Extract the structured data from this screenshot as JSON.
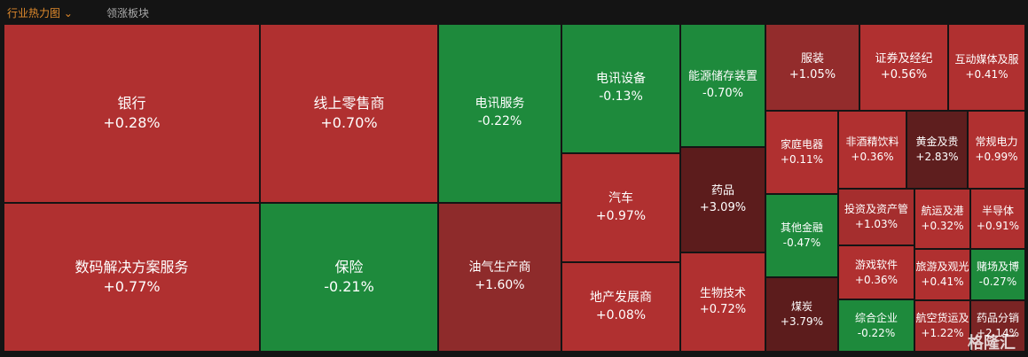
{
  "tabs": [
    "行业热力图",
    "领涨板块"
  ],
  "tiles": [
    {
      "name": "银行",
      "change": "+0.28%",
      "color": "#b03030"
    },
    {
      "name": "数码解决方案服务",
      "change": "+0.77%",
      "color": "#b03030"
    },
    {
      "name": "线上零售商",
      "change": "+0.70%",
      "color": "#b03030"
    },
    {
      "name": "保险",
      "change": "-0.21%",
      "color": "#1e8a3c"
    },
    {
      "name": "电讯服务",
      "change": "-0.22%",
      "color": "#1e8a3c"
    },
    {
      "name": "油气生产商",
      "change": "+1.60%",
      "color": "#8e2b2b"
    },
    {
      "name": "电讯设备",
      "change": "-0.13%",
      "color": "#1e8a3c"
    },
    {
      "name": "汽车",
      "change": "+0.97%",
      "color": "#b03030"
    },
    {
      "name": "地产发展商",
      "change": "+0.08%",
      "color": "#b03030"
    },
    {
      "name": "能源储存装置",
      "change": "-0.70%",
      "color": "#1e8a3c"
    },
    {
      "name": "药品",
      "change": "+3.09%",
      "color": "#5c1c1c"
    },
    {
      "name": "生物技术",
      "change": "+0.72%",
      "color": "#b03030"
    },
    {
      "name": "服装",
      "change": "+1.05%",
      "color": "#932c2c"
    },
    {
      "name": "证券及经纪",
      "change": "+0.56%",
      "color": "#b03030"
    },
    {
      "name": "互动媒体及服",
      "change": "+0.41%",
      "color": "#b03030"
    },
    {
      "name": "家庭电器",
      "change": "+0.11%",
      "color": "#b03030"
    },
    {
      "name": "其他金融",
      "change": "-0.47%",
      "color": "#1e8a3c"
    },
    {
      "name": "煤炭",
      "change": "+3.79%",
      "color": "#5c1c1c"
    },
    {
      "name": "非酒精饮料",
      "change": "+0.36%",
      "color": "#b03030"
    },
    {
      "name": "黄金及贵",
      "change": "+2.83%",
      "color": "#5e1e1e"
    },
    {
      "name": "常规电力",
      "change": "+0.99%",
      "color": "#b03030"
    },
    {
      "name": "投资及资产管",
      "change": "+1.03%",
      "color": "#a52e2e"
    },
    {
      "name": "游戏软件",
      "change": "+0.36%",
      "color": "#b03030"
    },
    {
      "name": "综合企业",
      "change": "-0.22%",
      "color": "#1e8a3c"
    },
    {
      "name": "航运及港",
      "change": "+0.32%",
      "color": "#b03030"
    },
    {
      "name": "半导体",
      "change": "+0.91%",
      "color": "#b03030"
    },
    {
      "name": "旅游及观光",
      "change": "+0.41%",
      "color": "#b03030"
    },
    {
      "name": "赌场及博",
      "change": "-0.27%",
      "color": "#1e8a3c"
    },
    {
      "name": "航空货运及",
      "change": "+1.22%",
      "color": "#a52e2e"
    },
    {
      "name": "药品分销",
      "change": "+2.14%",
      "color": "#7a2424"
    }
  ],
  "watermark": "格隆汇"
}
